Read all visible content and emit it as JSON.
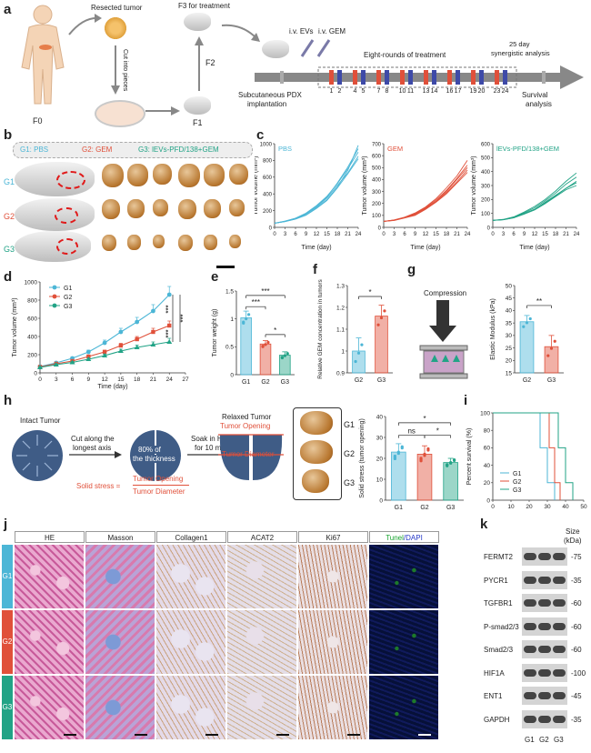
{
  "panels": {
    "a": "a",
    "b": "b",
    "c": "c",
    "d": "d",
    "e": "e",
    "f": "f",
    "g": "g",
    "h": "h",
    "i": "i",
    "j": "j",
    "k": "k"
  },
  "panel_a": {
    "resected_tumor": "Resected tumor",
    "cut_into_pieces": "Cut into pieces",
    "f0": "F0",
    "f1": "F1",
    "f2": "F2",
    "f3": "F3 for treatment",
    "ivevs": "i.v. EVs",
    "ivgem": "i.v. GEM",
    "eight_rounds": "Eight-rounds of treatment",
    "synergistic": "25 day",
    "synergistic2": "synergistic analysis",
    "subq": "Subcutaneous PDX",
    "implant": "implantation",
    "survival": "Survival",
    "analysis": "analysis",
    "days": [
      "1",
      "2",
      "4",
      "5",
      "7",
      "8",
      "10",
      "11",
      "13",
      "14",
      "16",
      "17",
      "19",
      "20",
      "23",
      "24"
    ]
  },
  "panel_b": {
    "g1": "G1: PBS",
    "g2": "G2: GEM",
    "g3": "G3: lEVs-PFD/138+GEM",
    "rows": [
      "G1",
      "G2",
      "G3"
    ]
  },
  "colors": {
    "g1": "#4cb6d6",
    "g2": "#e0503a",
    "g3": "#22a386",
    "gray": "#999999"
  },
  "chart_data": [
    {
      "id": "c1",
      "type": "line",
      "title": "PBS",
      "xlabel": "Time (day)",
      "ylabel": "Tumor volume (mm³)",
      "xticks": [
        0,
        3,
        6,
        9,
        12,
        15,
        18,
        21,
        24
      ],
      "yticks": [
        0,
        200,
        400,
        600,
        800,
        1000
      ],
      "ylim": [
        0,
        1000
      ],
      "x": [
        0,
        3,
        6,
        9,
        12,
        15,
        18,
        21,
        24
      ],
      "series": [
        {
          "values": [
            50,
            70,
            100,
            150,
            230,
            330,
            480,
            680,
            980
          ]
        },
        {
          "values": [
            50,
            75,
            110,
            170,
            260,
            370,
            520,
            700,
            900
          ]
        },
        {
          "values": [
            50,
            70,
            105,
            160,
            240,
            350,
            500,
            650,
            850
          ]
        },
        {
          "values": [
            50,
            72,
            108,
            165,
            250,
            360,
            530,
            720,
            940
          ]
        },
        {
          "values": [
            50,
            68,
            98,
            145,
            225,
            320,
            470,
            640,
            820
          ]
        }
      ]
    },
    {
      "id": "c2",
      "type": "line",
      "title": "GEM",
      "xlabel": "Time (day)",
      "ylabel": "Tumor volume (mm³)",
      "xticks": [
        0,
        3,
        6,
        9,
        12,
        15,
        18,
        21,
        24
      ],
      "yticks": [
        0,
        100,
        200,
        300,
        400,
        500,
        600,
        700
      ],
      "ylim": [
        0,
        700
      ],
      "x": [
        0,
        3,
        6,
        9,
        12,
        15,
        18,
        21,
        24
      ],
      "series": [
        {
          "values": [
            50,
            60,
            80,
            110,
            160,
            220,
            300,
            400,
            500
          ]
        },
        {
          "values": [
            50,
            62,
            85,
            120,
            170,
            240,
            330,
            430,
            560
          ]
        },
        {
          "values": [
            50,
            58,
            78,
            100,
            150,
            210,
            280,
            370,
            460
          ]
        },
        {
          "values": [
            50,
            61,
            82,
            115,
            165,
            230,
            310,
            410,
            520
          ]
        },
        {
          "values": [
            50,
            59,
            80,
            105,
            155,
            215,
            290,
            380,
            480
          ]
        }
      ]
    },
    {
      "id": "c3",
      "type": "line",
      "title": "lEVs-PFD/138+GEM",
      "xlabel": "Time (day)",
      "ylabel": "Tumor volume (mm³)",
      "xticks": [
        0,
        3,
        6,
        9,
        12,
        15,
        18,
        21,
        24
      ],
      "yticks": [
        0,
        100,
        200,
        300,
        400,
        500,
        600
      ],
      "ylim": [
        0,
        600
      ],
      "x": [
        0,
        3,
        6,
        9,
        12,
        15,
        18,
        21,
        24
      ],
      "series": [
        {
          "values": [
            50,
            55,
            70,
            100,
            130,
            180,
            230,
            280,
            330
          ]
        },
        {
          "values": [
            50,
            57,
            75,
            110,
            150,
            200,
            260,
            330,
            390
          ]
        },
        {
          "values": [
            50,
            54,
            68,
            95,
            125,
            170,
            220,
            270,
            300
          ]
        },
        {
          "values": [
            50,
            56,
            72,
            105,
            140,
            190,
            245,
            310,
            360
          ]
        },
        {
          "values": [
            50,
            55,
            70,
            98,
            128,
            175,
            225,
            280,
            320
          ]
        }
      ]
    },
    {
      "id": "d",
      "type": "line",
      "xlabel": "Time (day)",
      "ylabel": "Tumor volume (mm³)",
      "xticks": [
        0,
        3,
        6,
        9,
        12,
        15,
        18,
        21,
        24,
        27
      ],
      "yticks": [
        0,
        100,
        200,
        300,
        400,
        500,
        600,
        700,
        800,
        900,
        1000
      ],
      "ylim": [
        0,
        1000
      ],
      "x": [
        0,
        3,
        6,
        9,
        12,
        15,
        18,
        21,
        24
      ],
      "series": [
        {
          "name": "G1",
          "values": [
            70,
            110,
            160,
            230,
            330,
            450,
            560,
            680,
            860
          ],
          "err": [
            10,
            12,
            15,
            20,
            30,
            40,
            50,
            70,
            90
          ]
        },
        {
          "name": "G2",
          "values": [
            65,
            100,
            130,
            180,
            230,
            300,
            370,
            450,
            520
          ],
          "err": [
            8,
            10,
            12,
            15,
            20,
            25,
            30,
            40,
            50
          ]
        },
        {
          "name": "G3",
          "values": [
            60,
            90,
            115,
            150,
            190,
            240,
            280,
            310,
            340
          ],
          "err": [
            8,
            9,
            10,
            12,
            15,
            20,
            25,
            30,
            40
          ]
        }
      ],
      "sig": [
        "***",
        "***",
        "***"
      ]
    },
    {
      "id": "e",
      "type": "bar",
      "ylabel": "Tumor weight (g)",
      "categories": [
        "G1",
        "G2",
        "G3"
      ],
      "values": [
        1.02,
        0.55,
        0.35
      ],
      "err": [
        0.12,
        0.06,
        0.06
      ],
      "yticks": [
        0,
        0.5,
        1.0,
        1.5
      ],
      "ylim": [
        0,
        1.5
      ],
      "sig": [
        "***",
        "***",
        "*"
      ]
    },
    {
      "id": "f",
      "type": "bar",
      "ylabel": "Relative GEM concentration in tumors",
      "categories": [
        "G2",
        "G3"
      ],
      "values": [
        1.0,
        1.16
      ],
      "err": [
        0.06,
        0.05
      ],
      "yticks": [
        0.9,
        1.0,
        1.1,
        1.2,
        1.3
      ],
      "ylim": [
        0.9,
        1.3
      ],
      "sig": [
        "*"
      ]
    },
    {
      "id": "g",
      "type": "bar",
      "ylabel": "Elastic Modulus (kPa)",
      "categories": [
        "G2",
        "G3"
      ],
      "values": [
        35.5,
        25.5
      ],
      "err": [
        2.5,
        4.5
      ],
      "yticks": [
        15,
        20,
        25,
        30,
        35,
        40,
        45,
        50
      ],
      "ylim": [
        15,
        50
      ],
      "sig": [
        "**"
      ]
    },
    {
      "id": "h",
      "type": "bar",
      "ylabel": "Solid stress (tumor opening)",
      "categories": [
        "G1",
        "G2",
        "G3"
      ],
      "values": [
        23,
        22,
        18
      ],
      "err": [
        4,
        4,
        2
      ],
      "yticks": [
        0,
        10,
        20,
        30,
        40
      ],
      "ylim": [
        0,
        40
      ],
      "sig": [
        "ns",
        "*",
        "*"
      ]
    },
    {
      "id": "i",
      "type": "line",
      "ylabel": "Percent survival (%)",
      "xticks": [
        0,
        10,
        20,
        30,
        40,
        50
      ],
      "yticks": [
        0,
        20,
        40,
        60,
        80,
        100
      ],
      "ylim": [
        0,
        100
      ],
      "series": [
        {
          "name": "G1",
          "values": [
            [
              0,
              100
            ],
            [
              26,
              100
            ],
            [
              26,
              60
            ],
            [
              30,
              60
            ],
            [
              30,
              20
            ],
            [
              34,
              20
            ],
            [
              34,
              0
            ]
          ]
        },
        {
          "name": "G2",
          "values": [
            [
              0,
              100
            ],
            [
              31,
              100
            ],
            [
              31,
              60
            ],
            [
              34,
              60
            ],
            [
              34,
              20
            ],
            [
              37,
              20
            ],
            [
              37,
              0
            ]
          ]
        },
        {
          "name": "G3",
          "values": [
            [
              0,
              100
            ],
            [
              36,
              100
            ],
            [
              36,
              60
            ],
            [
              40,
              60
            ],
            [
              40,
              20
            ],
            [
              44,
              20
            ],
            [
              44,
              0
            ]
          ]
        }
      ]
    }
  ],
  "panel_g": {
    "compression": "Compression"
  },
  "panel_h": {
    "intact": "Intact Tumor",
    "cut": "Cut along the",
    "cut2": "longest axis",
    "pct": "80% of",
    "pct2": "the thickness",
    "soak": "Soak in HBSS",
    "soak2": "for 10 min",
    "relaxed": "Relaxed Tumor",
    "opening": "Tumor Opening",
    "diameter": "Tumor Diameter",
    "formula": "Solid stress =",
    "formula_num": "Tumor Opening",
    "formula_den": "Tumor Diameter",
    "rows": [
      "G1",
      "G2",
      "G3"
    ]
  },
  "panel_j": {
    "columns": [
      "HE",
      "Masson",
      "Collagen1",
      "ACAT2",
      "Ki67"
    ],
    "tunel": "Tunel",
    "dapi": "/DAPI",
    "rows": [
      "G1",
      "G2",
      "G3"
    ]
  },
  "panel_k": {
    "size_label": "Size",
    "size_unit": "(kDa)",
    "proteins": [
      "FERMT2",
      "PYCR1",
      "TGFBR1",
      "P-smad2/3",
      "Smad2/3",
      "HIF1A",
      "ENT1",
      "GAPDH"
    ],
    "sizes": [
      "75",
      "35",
      "60",
      "60",
      "60",
      "100",
      "45",
      "35"
    ],
    "lanes": [
      "G1",
      "G2",
      "G3"
    ]
  }
}
